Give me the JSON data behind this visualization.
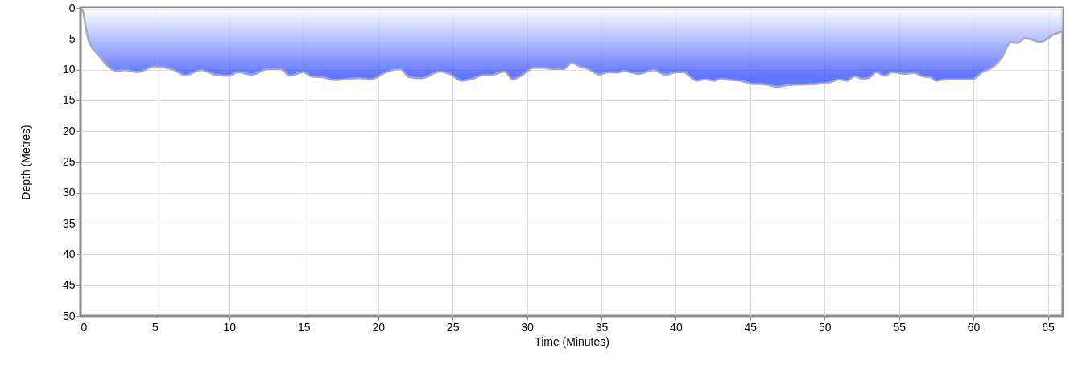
{
  "chart_data": {
    "type": "area",
    "xlabel": "Time (Minutes)",
    "ylabel": "Depth (Metres)",
    "x": [
      0,
      0.1,
      0.54,
      1.26,
      2.44,
      2.98,
      3.87,
      4.96,
      6.13,
      7.03,
      8.12,
      9.02,
      10.0,
      10.55,
      11.54,
      12.62,
      13.44,
      14.07,
      14.97,
      15.51,
      16.41,
      17.05,
      18.75,
      19.48,
      20.56,
      21.46,
      22.09,
      22.9,
      24.17,
      24.8,
      25.6,
      26.3,
      27.06,
      27.6,
      28.5,
      29.04,
      29.6,
      30.48,
      31.02,
      31.74,
      32.47,
      33.0,
      33.55,
      34.1,
      34.9,
      35.5,
      36.07,
      36.5,
      37.5,
      38.5,
      39.3,
      40.1,
      40.5,
      41.4,
      42.0,
      42.6,
      43.0,
      43.8,
      44.3,
      45.1,
      46.0,
      46.8,
      47.6,
      48.7,
      50.3,
      51.0,
      51.5,
      52.0,
      52.6,
      53.0,
      53.5,
      54.0,
      54.6,
      55.4,
      56.0,
      56.6,
      57.1,
      57.5,
      58.1,
      59.9,
      60.6,
      61.3,
      61.9,
      62.5,
      62.9,
      63.5,
      64.5,
      65.4,
      65.9,
      66
    ],
    "series": [
      {
        "color": "#1f3dff",
        "values": [
          0,
          0.2,
          5.2,
          7.8,
          10.2,
          10.1,
          10.4,
          9.5,
          9.9,
          10.9,
          10.1,
          10.8,
          11.0,
          10.4,
          10.8,
          9.9,
          9.9,
          11.0,
          10.4,
          11.1,
          11.3,
          11.7,
          11.4,
          11.6,
          10.4,
          9.9,
          11.2,
          11.4,
          10.3,
          10.7,
          11.8,
          11.5,
          10.9,
          10.9,
          10.3,
          11.6,
          11.0,
          9.7,
          9.7,
          9.9,
          9.9,
          8.9,
          9.5,
          9.9,
          10.8,
          10.4,
          10.5,
          10.2,
          10.7,
          10.1,
          10.8,
          10.4,
          10.4,
          11.8,
          11.6,
          11.8,
          11.5,
          11.7,
          11.8,
          12.3,
          12.4,
          12.8,
          12.5,
          12.4,
          12.1,
          11.6,
          11.8,
          11.1,
          11.5,
          11.3,
          10.4,
          11.0,
          10.4,
          10.7,
          10.5,
          11.1,
          11.2,
          11.8,
          11.6,
          11.6,
          10.4,
          9.6,
          8.1,
          5.5,
          5.7,
          4.9,
          5.5,
          4.3,
          3.8,
          3.7
        ]
      }
    ],
    "xlim": [
      0,
      66
    ],
    "xticks": [
      0,
      5,
      10,
      15,
      20,
      25,
      30,
      35,
      40,
      45,
      50,
      55,
      60,
      65
    ],
    "ylim": [
      50,
      0
    ],
    "yticks": [
      0,
      5,
      10,
      15,
      20,
      25,
      30,
      35,
      40,
      45,
      50
    ],
    "grid": true
  }
}
